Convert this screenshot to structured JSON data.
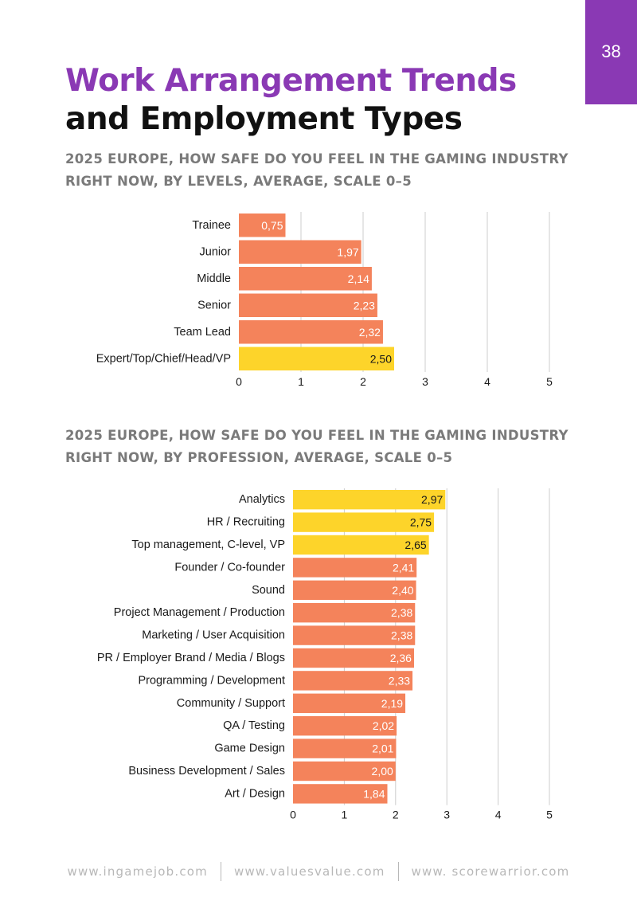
{
  "page_number": "38",
  "title": {
    "line1": "Work Arrangement Trends",
    "line2": "and Employment Types"
  },
  "colors": {
    "accent": "#8a39b4",
    "bar_default": "#f4835b",
    "bar_highlight": "#fdd42a",
    "grid": "#cccccc"
  },
  "chart_data": [
    {
      "type": "bar",
      "orientation": "horizontal",
      "title_line1": "2025 EUROPE, HOW SAFE DO YOU FEEL IN THE GAMING INDUSTRY",
      "title_line2": "RIGHT NOW, BY LEVELS, AVERAGE, SCALE 0–5",
      "categories": [
        "Trainee",
        "Junior",
        "Middle",
        "Senior",
        "Team Lead",
        "Expert/Top/Chief/Head/VP"
      ],
      "values": [
        0.75,
        1.97,
        2.14,
        2.23,
        2.32,
        2.5
      ],
      "labels": [
        "0,75",
        "1,97",
        "2,14",
        "2,23",
        "2,32",
        "2,50"
      ],
      "highlight": [
        false,
        false,
        false,
        false,
        false,
        true
      ],
      "xlim": [
        0,
        5
      ],
      "xticks": [
        "0",
        "1",
        "2",
        "3",
        "4",
        "5"
      ],
      "grid": true
    },
    {
      "type": "bar",
      "orientation": "horizontal",
      "title_line1": "2025 EUROPE, HOW SAFE DO YOU FEEL IN THE GAMING INDUSTRY",
      "title_line2": "RIGHT NOW, BY PROFESSION, AVERAGE, SCALE 0–5",
      "categories": [
        "Analytics",
        "HR / Recruiting",
        "Top management, C-level, VP",
        "Founder / Co-founder",
        "Sound",
        "Project Management / Production",
        "Marketing / User Acquisition",
        "PR / Employer Brand / Media / Blogs",
        "Programming / Development",
        "Community / Support",
        "QA / Testing",
        "Game Design",
        "Business Development / Sales",
        "Art / Design"
      ],
      "values": [
        2.97,
        2.75,
        2.65,
        2.41,
        2.4,
        2.38,
        2.38,
        2.36,
        2.33,
        2.19,
        2.02,
        2.01,
        2.0,
        1.84
      ],
      "labels": [
        "2,97",
        "2,75",
        "2,65",
        "2,41",
        "2,40",
        "2,38",
        "2,38",
        "2,36",
        "2,33",
        "2,19",
        "2,02",
        "2,01",
        "2,00",
        "1,84"
      ],
      "highlight": [
        true,
        true,
        true,
        false,
        false,
        false,
        false,
        false,
        false,
        false,
        false,
        false,
        false,
        false
      ],
      "xlim": [
        0,
        5
      ],
      "xticks": [
        "0",
        "1",
        "2",
        "3",
        "4",
        "5"
      ],
      "grid": true
    }
  ],
  "footer": {
    "links": [
      "www.ingamejob.com",
      "www.valuesvalue.com",
      "www. scorewarrior.com"
    ]
  }
}
